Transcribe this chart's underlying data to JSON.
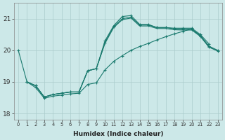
{
  "xlabel": "Humidex (Indice chaleur)",
  "background_color": "#cce8e8",
  "grid_color": "#aacccc",
  "line_color": "#1a7a6e",
  "xlim": [
    -0.5,
    23.5
  ],
  "ylim": [
    17.8,
    21.5
  ],
  "yticks": [
    18,
    19,
    20,
    21
  ],
  "xticks": [
    0,
    1,
    2,
    3,
    4,
    5,
    6,
    7,
    8,
    9,
    10,
    11,
    12,
    13,
    14,
    15,
    16,
    17,
    18,
    19,
    20,
    21,
    22,
    23
  ],
  "curve1_x": [
    0,
    1,
    2,
    3,
    4,
    5,
    6,
    7,
    8,
    9,
    10,
    11,
    12,
    13,
    14,
    15,
    16,
    17,
    18,
    19,
    20,
    21,
    22
  ],
  "curve1_y": [
    20.0,
    19.0,
    18.88,
    18.52,
    18.6,
    18.64,
    18.68,
    18.68,
    19.35,
    19.42,
    20.3,
    20.78,
    21.07,
    21.1,
    20.82,
    20.82,
    20.72,
    20.72,
    20.7,
    20.7,
    20.7,
    20.5,
    20.2
  ],
  "curve2_x": [
    1,
    2,
    3,
    4,
    5,
    6,
    7,
    8,
    9,
    10,
    11,
    12,
    13,
    14,
    15,
    16,
    17,
    18,
    19,
    20,
    21,
    22,
    23
  ],
  "curve2_y": [
    19.0,
    18.88,
    18.52,
    18.6,
    18.64,
    18.68,
    18.68,
    19.35,
    19.42,
    20.25,
    20.75,
    21.0,
    21.05,
    20.8,
    20.8,
    20.72,
    20.72,
    20.68,
    20.67,
    20.67,
    20.47,
    20.13,
    20.0
  ],
  "curve3_x": [
    1,
    2,
    3,
    4,
    5,
    6,
    7,
    8,
    9,
    10,
    11,
    12,
    13,
    14,
    15,
    16,
    17,
    18,
    19,
    20,
    21,
    22,
    23
  ],
  "curve3_y": [
    19.0,
    18.88,
    18.52,
    18.6,
    18.64,
    18.68,
    18.68,
    19.35,
    19.42,
    20.22,
    20.72,
    20.97,
    21.02,
    20.77,
    20.77,
    20.69,
    20.69,
    20.65,
    20.64,
    20.64,
    20.44,
    20.1,
    19.98
  ],
  "curve4_x": [
    1,
    2,
    3,
    4,
    5,
    6,
    7,
    8,
    9,
    10,
    11,
    12,
    13,
    14,
    15,
    16,
    17,
    18,
    19,
    20,
    21,
    22,
    23
  ],
  "curve4_y": [
    19.0,
    18.82,
    18.48,
    18.55,
    18.58,
    18.62,
    18.64,
    18.92,
    18.97,
    19.38,
    19.65,
    19.83,
    20.0,
    20.12,
    20.22,
    20.33,
    20.43,
    20.52,
    20.6,
    20.68,
    20.44,
    20.1,
    19.98
  ]
}
